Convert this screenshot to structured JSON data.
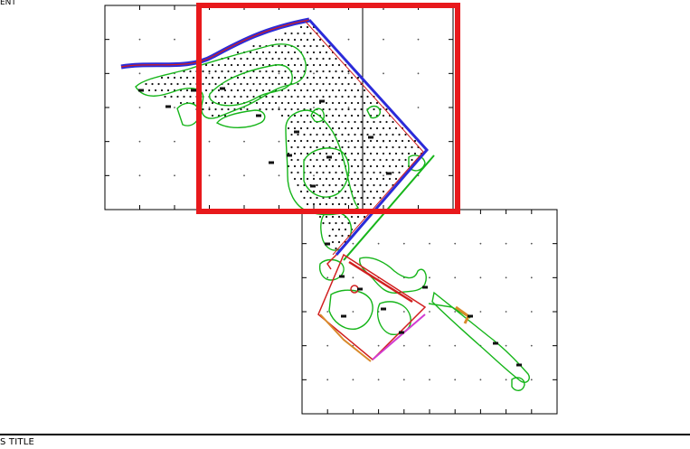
{
  "top_left_label": "ENT",
  "title_block": {
    "label": "S TITLE"
  },
  "colors": {
    "highlight": "#e8191c",
    "contour": "#16b51a",
    "road": "#2b2bd9",
    "boundary": "#d11f1f",
    "accent": "#d23bd2"
  },
  "viewport": {
    "frame": "map-viewport-frame"
  }
}
